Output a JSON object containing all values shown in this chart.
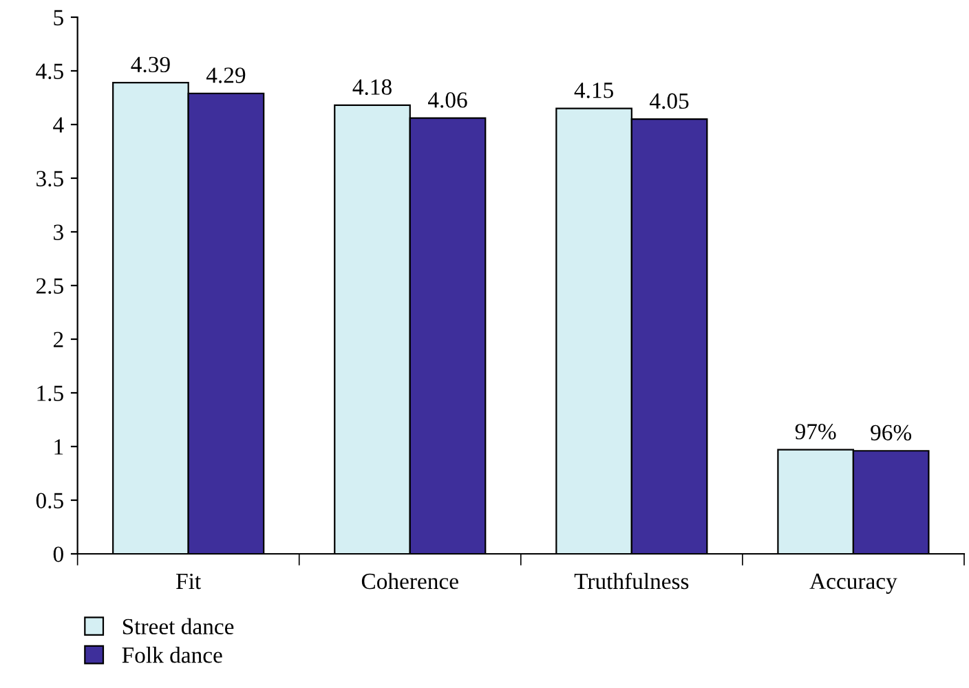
{
  "chart_data": {
    "type": "bar",
    "categories": [
      "Fit",
      "Coherence",
      "Truthfulness",
      "Accuracy"
    ],
    "series": [
      {
        "name": "Street dance",
        "color": "#d5eff3",
        "values": [
          4.39,
          4.18,
          4.15,
          0.97
        ],
        "value_labels": [
          "4.39",
          "4.18",
          "4.15",
          "97%"
        ]
      },
      {
        "name": "Folk dance",
        "color": "#3e2f9b",
        "values": [
          4.29,
          4.06,
          4.05,
          0.96
        ],
        "value_labels": [
          "4.29",
          "4.06",
          "4.05",
          "96%"
        ]
      }
    ],
    "ylim": [
      0,
      5
    ],
    "yticks": [
      0,
      0.5,
      1,
      1.5,
      2,
      2.5,
      3,
      3.5,
      4,
      4.5,
      5
    ],
    "grid": false,
    "legend": "bottom left"
  }
}
